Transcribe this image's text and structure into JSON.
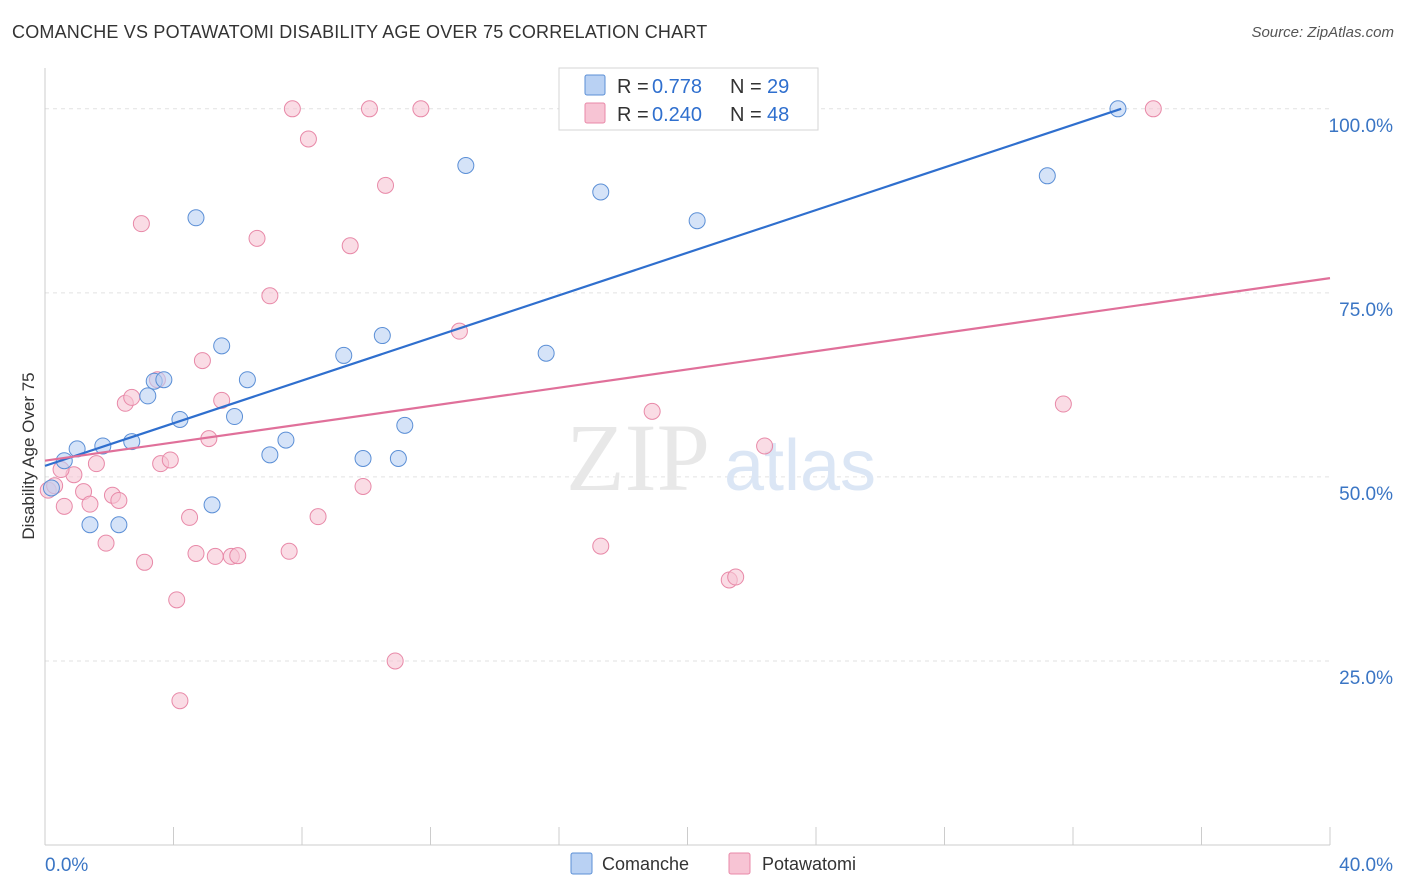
{
  "header": {
    "title": "COMANCHE VS POTAWATOMI DISABILITY AGE OVER 75 CORRELATION CHART",
    "source": "Source: ZipAtlas.com"
  },
  "watermark": {
    "zip": "ZIP",
    "atlas": "atlas"
  },
  "colors": {
    "comanche": "#5b8fd6",
    "comanche_fill": "#b9d1f3",
    "comanche_line": "#2f6fce",
    "potawatomi": "#e889a8",
    "potawatomi_fill": "#f7c4d4",
    "potawatomi_line": "#e0709a",
    "value_text": "#2f6fce"
  },
  "legend": {
    "rows": [
      {
        "r_label": "R = ",
        "r_value": "0.778",
        "n_label": "N = ",
        "n_value": "29"
      },
      {
        "r_label": "R = ",
        "r_value": "0.240",
        "n_label": "N = ",
        "n_value": "48"
      }
    ]
  },
  "chart_data": {
    "type": "scatter",
    "title": "COMANCHE VS POTAWATOMI DISABILITY AGE OVER 75 CORRELATION CHART",
    "xlabel": "",
    "ylabel": "Disability Age Over 75",
    "xlim": [
      0,
      40
    ],
    "ylim": [
      0,
      105
    ],
    "x_tick_labels": [
      "0.0%",
      "40.0%"
    ],
    "y_ticks": [
      25,
      50,
      75,
      100
    ],
    "y_tick_labels": [
      "25.0%",
      "50.0%",
      "75.0%",
      "100.0%"
    ],
    "grid": true,
    "legend_position": "bottom-center",
    "series": [
      {
        "name": "Comanche",
        "r": 0.778,
        "n": 29,
        "trend": [
          [
            0,
            51.5
          ],
          [
            33.5,
            100
          ]
        ],
        "points": [
          [
            0.2,
            48.5
          ],
          [
            0.6,
            52.2
          ],
          [
            1.0,
            53.8
          ],
          [
            1.4,
            43.5
          ],
          [
            1.8,
            54.2
          ],
          [
            2.3,
            43.5
          ],
          [
            2.7,
            54.8
          ],
          [
            3.2,
            61.0
          ],
          [
            3.4,
            63.0
          ],
          [
            3.7,
            63.2
          ],
          [
            4.2,
            57.8
          ],
          [
            4.7,
            85.2
          ],
          [
            5.2,
            46.2
          ],
          [
            5.5,
            67.8
          ],
          [
            5.9,
            58.2
          ],
          [
            6.3,
            63.2
          ],
          [
            7.0,
            53.0
          ],
          [
            7.5,
            55.0
          ],
          [
            9.3,
            66.5
          ],
          [
            9.9,
            52.5
          ],
          [
            10.5,
            69.2
          ],
          [
            11.0,
            52.5
          ],
          [
            11.2,
            57.0
          ],
          [
            13.1,
            92.3
          ],
          [
            15.6,
            66.8
          ],
          [
            17.3,
            88.7
          ],
          [
            20.3,
            84.8
          ],
          [
            31.2,
            90.9
          ],
          [
            33.4,
            100.0
          ]
        ]
      },
      {
        "name": "Potawatomi",
        "r": 0.24,
        "n": 48,
        "trend": [
          [
            0,
            52.2
          ],
          [
            40,
            77.0
          ]
        ],
        "points": [
          [
            0.1,
            48.2
          ],
          [
            0.3,
            48.8
          ],
          [
            0.6,
            46.0
          ],
          [
            0.9,
            50.3
          ],
          [
            1.2,
            48.0
          ],
          [
            1.4,
            46.3
          ],
          [
            1.6,
            51.8
          ],
          [
            1.9,
            41.0
          ],
          [
            2.1,
            47.5
          ],
          [
            2.3,
            46.8
          ],
          [
            2.5,
            60.0
          ],
          [
            2.7,
            60.8
          ],
          [
            3.0,
            84.4
          ],
          [
            3.1,
            38.4
          ],
          [
            3.5,
            63.2
          ],
          [
            3.6,
            51.8
          ],
          [
            3.9,
            52.3
          ],
          [
            4.1,
            33.3
          ],
          [
            4.2,
            19.6
          ],
          [
            4.5,
            44.5
          ],
          [
            4.7,
            39.6
          ],
          [
            4.9,
            65.8
          ],
          [
            5.1,
            55.2
          ],
          [
            5.3,
            39.2
          ],
          [
            5.5,
            60.4
          ],
          [
            5.8,
            39.2
          ],
          [
            6.0,
            39.3
          ],
          [
            6.6,
            82.4
          ],
          [
            7.0,
            74.6
          ],
          [
            7.6,
            39.9
          ],
          [
            7.7,
            100.0
          ],
          [
            8.2,
            95.9
          ],
          [
            8.5,
            44.6
          ],
          [
            9.5,
            81.4
          ],
          [
            9.9,
            48.7
          ],
          [
            10.1,
            100.0
          ],
          [
            10.6,
            89.6
          ],
          [
            10.9,
            25.0
          ],
          [
            11.7,
            100.0
          ],
          [
            12.9,
            69.8
          ],
          [
            17.3,
            40.6
          ],
          [
            18.9,
            58.9
          ],
          [
            21.3,
            36.0
          ],
          [
            21.5,
            36.4
          ],
          [
            22.4,
            54.2
          ],
          [
            31.7,
            59.9
          ],
          [
            34.5,
            100.0
          ],
          [
            0.5,
            51.0
          ]
        ]
      }
    ]
  }
}
